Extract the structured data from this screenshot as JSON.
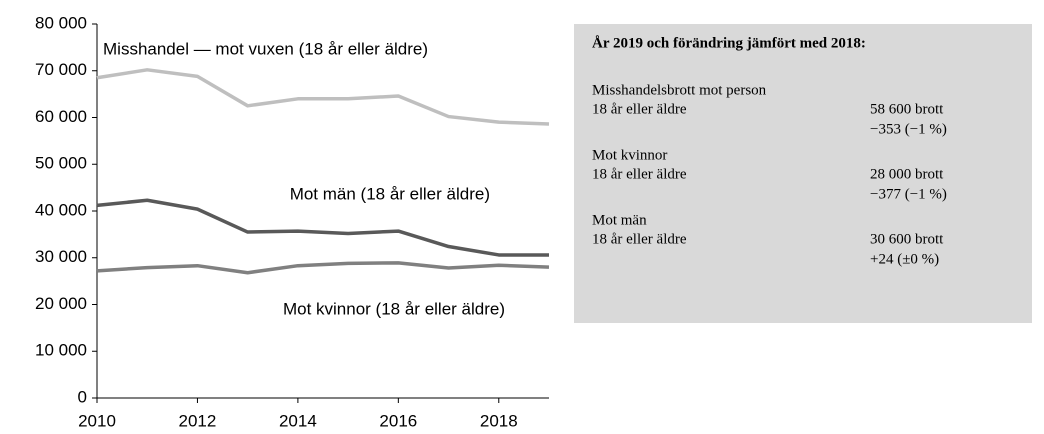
{
  "chart_data": {
    "type": "line",
    "x": [
      2010,
      2011,
      2012,
      2013,
      2014,
      2015,
      2016,
      2017,
      2018,
      2019
    ],
    "xlim": [
      2010,
      2019
    ],
    "xticks": [
      2010,
      2012,
      2014,
      2016,
      2018
    ],
    "ylim": [
      0,
      80000
    ],
    "yticks": [
      0,
      {
        "value": 10000,
        "label": "10 000"
      },
      {
        "value": 20000,
        "label": "20 000"
      },
      {
        "value": 30000,
        "label": "30 000"
      },
      {
        "value": 40000,
        "label": "40 000"
      },
      {
        "value": 50000,
        "label": "50 000"
      },
      {
        "value": 60000,
        "label": "60 000"
      },
      {
        "value": 70000,
        "label": "70 000"
      },
      {
        "value": 80000,
        "label": "80 000"
      }
    ],
    "grid": false,
    "series": [
      {
        "name": "Misshandel — mot vuxen (18 år eller äldre)",
        "color": "#bfbfbf",
        "values": [
          68500,
          70200,
          68800,
          62500,
          64000,
          64000,
          64600,
          60200,
          59000,
          58600
        ]
      },
      {
        "name": "Mot män (18 år eller äldre)",
        "color": "#595959",
        "values": [
          41200,
          42300,
          40400,
          35500,
          35700,
          35200,
          35700,
          32400,
          30600,
          30600
        ]
      },
      {
        "name": "Mot kvinnor (18 år eller äldre)",
        "color": "#808080",
        "values": [
          27200,
          27900,
          28300,
          26800,
          28300,
          28800,
          28900,
          27800,
          28400,
          28000
        ]
      }
    ]
  },
  "info_box": {
    "title": "År 2019 och förändring jämfört med 2018:",
    "items": [
      {
        "label": "Misshandelsbrott mot person",
        "sublabel": "18 år eller äldre",
        "value": "58 600 brott",
        "change": "−353 (−1 %)"
      },
      {
        "label": "Mot kvinnor",
        "sublabel": "18 år eller äldre",
        "value": "28 000 brott",
        "change": "−377 (−1 %)"
      },
      {
        "label": "Mot män",
        "sublabel": "18 år eller äldre",
        "value": "30 600 brott",
        "change": "+24 (±0 %)"
      }
    ]
  }
}
